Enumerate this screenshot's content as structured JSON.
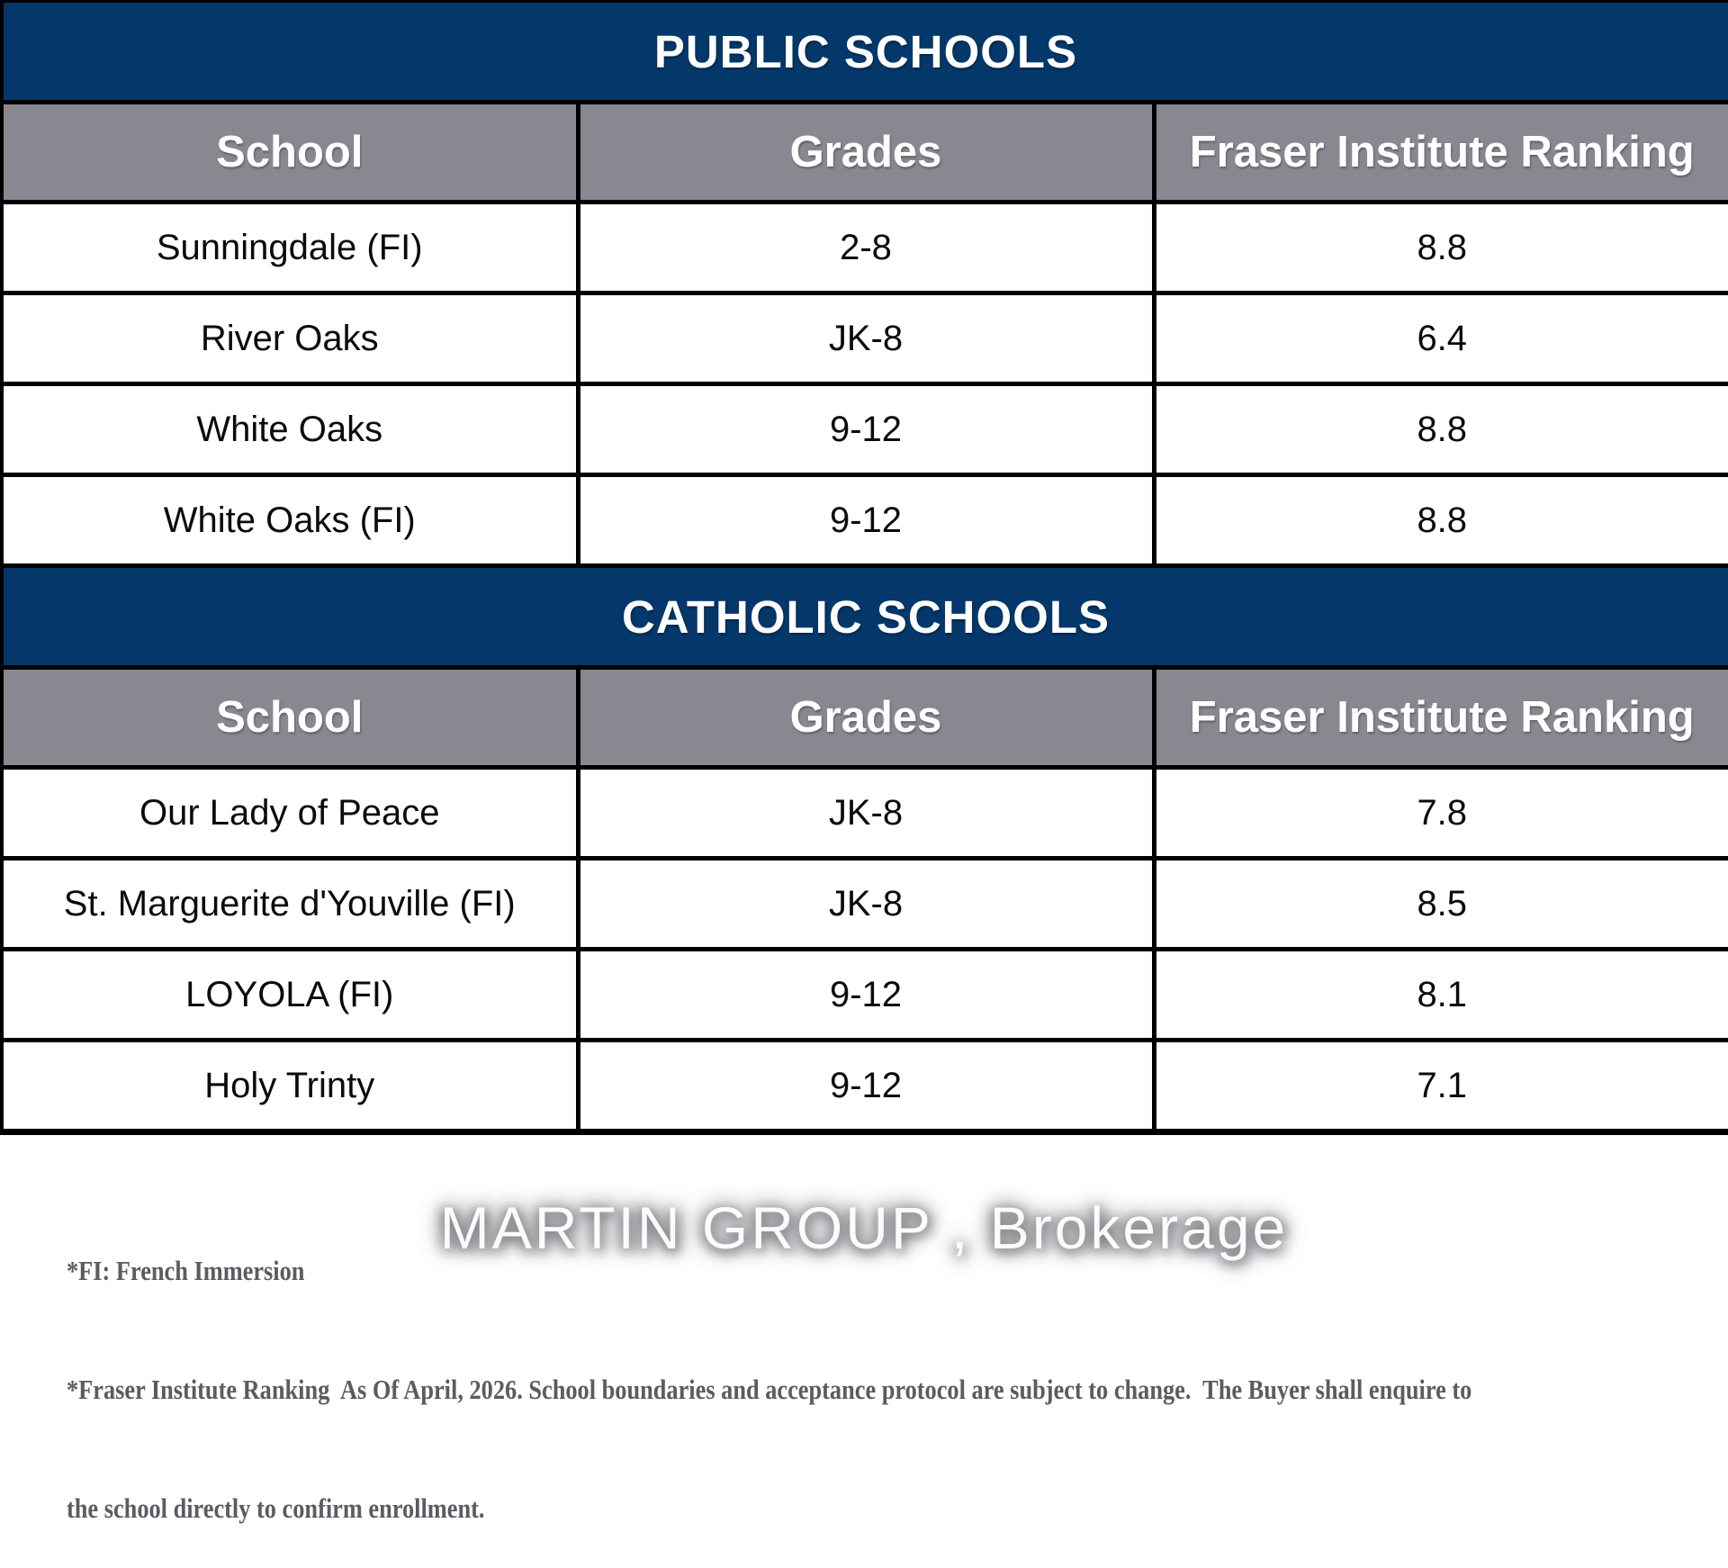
{
  "colors": {
    "band_background": "#04386b",
    "column_header_background": "#8a8791",
    "border": "#000000",
    "band_text": "#ffffff",
    "cell_text": "#0b0b0b",
    "footnote_text": "#5b5b61",
    "watermark_text": "#ffffff"
  },
  "sections": [
    {
      "title": "PUBLIC SCHOOLS",
      "columns": [
        "School",
        "Grades",
        "Fraser Institute Ranking"
      ],
      "rows": [
        {
          "school": "Sunningdale (FI)",
          "grades": "2-8",
          "ranking": "8.8"
        },
        {
          "school": "River Oaks",
          "grades": "JK-8",
          "ranking": "6.4"
        },
        {
          "school": "White Oaks",
          "grades": "9-12",
          "ranking": "8.8"
        },
        {
          "school": "White Oaks (FI)",
          "grades": "9-12",
          "ranking": "8.8"
        }
      ]
    },
    {
      "title": "CATHOLIC SCHOOLS",
      "columns": [
        "School",
        "Grades",
        "Fraser Institute Ranking"
      ],
      "rows": [
        {
          "school": "Our Lady of Peace",
          "grades": "JK-8",
          "ranking": "7.8"
        },
        {
          "school": "St. Marguerite d'Youville (FI)",
          "grades": "JK-8",
          "ranking": "8.5"
        },
        {
          "school": "LOYOLA (FI)",
          "grades": "9-12",
          "ranking": "8.1"
        },
        {
          "school": "Holy Trinty",
          "grades": "9-12",
          "ranking": "7.1"
        }
      ]
    }
  ],
  "footnotes": [
    "*FI: French Immersion",
    "*Fraser Institute Ranking  As Of April, 2026. School boundaries and acceptance protocol are subject to change.  The Buyer shall enquire to",
    "the school directly to confirm enrollment."
  ],
  "watermark": "MARTIN GROUP , Brokerage"
}
